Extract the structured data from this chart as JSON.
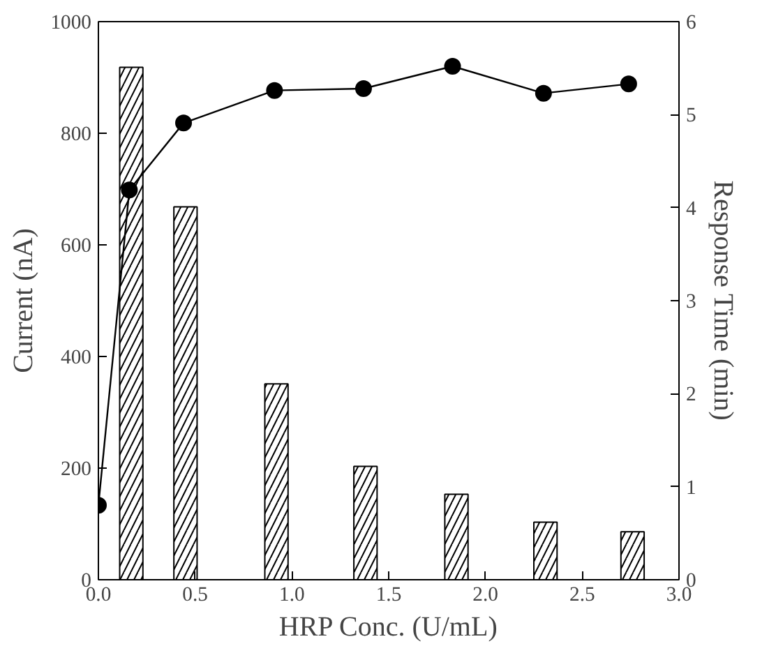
{
  "chart_data": {
    "type": "bar",
    "xlabel": "HRP Conc. (U/mL)",
    "ylabel": "Current (nA)",
    "y2label": "Response Time (min)",
    "x": [
      0.17,
      0.45,
      0.92,
      1.38,
      1.85,
      2.31,
      2.76
    ],
    "series": [
      {
        "color": "#000000",
        "values": [
          918,
          668,
          351,
          203,
          153,
          103,
          86
        ]
      },
      {
        "type": "line",
        "axis": "y2",
        "color": "#000000",
        "x": [
          0,
          0.16,
          0.44,
          0.91,
          1.37,
          1.83,
          2.3,
          2.74
        ],
        "values": [
          0.8,
          4.19,
          4.91,
          5.26,
          5.28,
          5.52,
          5.23,
          5.33
        ]
      }
    ],
    "xlim": [
      0,
      3
    ],
    "xticks": [
      {
        "value": 0,
        "label": "0.0"
      },
      {
        "value": 0.5,
        "label": "0.5"
      },
      {
        "value": 1,
        "label": "1.0"
      },
      {
        "value": 1.5,
        "label": "1.5"
      },
      {
        "value": 2,
        "label": "2.0"
      },
      {
        "value": 2.5,
        "label": "2.5"
      },
      {
        "value": 3,
        "label": "3.0"
      }
    ],
    "ylim": [
      0,
      1000
    ],
    "yticks": [
      0,
      200,
      400,
      600,
      800,
      1000
    ],
    "y2lim": [
      0,
      6
    ],
    "y2ticks": [
      0,
      1,
      2,
      3,
      4,
      5,
      6
    ],
    "marker": "circle",
    "grid": false
  }
}
